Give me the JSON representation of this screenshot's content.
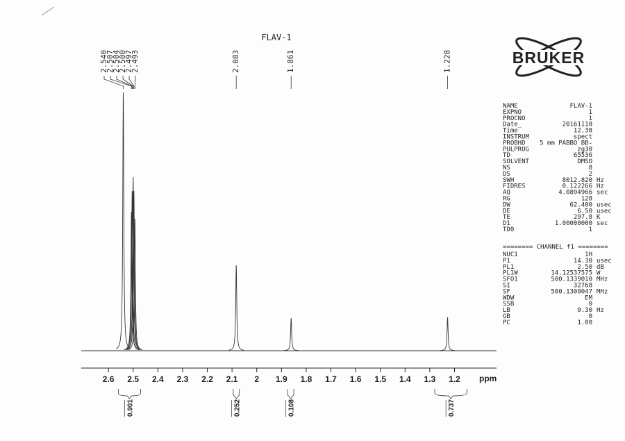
{
  "chart_data": {
    "type": "nmr",
    "title": "FLAV-1",
    "logo": "BRUKER",
    "x_label": "ppm",
    "xlim": [
      2.71,
      1.03
    ],
    "xticks": [
      2.6,
      2.5,
      2.4,
      2.3,
      2.2,
      2.1,
      2.0,
      1.9,
      1.8,
      1.7,
      1.6,
      1.5,
      1.4,
      1.3,
      1.2
    ],
    "ylim": [
      0,
      400
    ],
    "color": "#333333",
    "peak_labels": [
      {
        "value": 2.54,
        "label": "2.540"
      },
      {
        "value": 2.507,
        "label": "2.507"
      },
      {
        "value": 2.504,
        "label": "2.504"
      },
      {
        "value": 2.5,
        "label": "2.500"
      },
      {
        "value": 2.497,
        "label": "2.497"
      },
      {
        "value": 2.493,
        "label": "2.493"
      },
      {
        "value": 2.083,
        "label": "2.083"
      },
      {
        "value": 1.861,
        "label": "1.861"
      },
      {
        "value": 1.228,
        "label": "1.228"
      }
    ],
    "peak_heights": [
      372,
      200,
      230,
      250,
      230,
      190,
      123,
      47,
      48
    ],
    "integrals": [
      {
        "range": [
          2.56,
          2.47
        ],
        "value": 0.901
      },
      {
        "range": [
          2.095,
          2.07
        ],
        "value": 0.252
      },
      {
        "range": [
          1.875,
          1.85
        ],
        "value": 0.108
      },
      {
        "range": [
          1.28,
          1.15
        ],
        "value": 0.737
      }
    ],
    "parameters": [
      [
        "NAME",
        "FLAV-1",
        ""
      ],
      [
        "EXPNO",
        "1",
        ""
      ],
      [
        "PROCNO",
        "1",
        ""
      ],
      [
        "Date_",
        "20161118",
        ""
      ],
      [
        "Time",
        "12.38",
        ""
      ],
      [
        "INSTRUM",
        "spect",
        ""
      ],
      [
        "PROBHD",
        "5 mm PABBO BB-",
        ""
      ],
      [
        "PULPROG",
        "zg30",
        ""
      ],
      [
        "TD",
        "65536",
        ""
      ],
      [
        "SOLVENT",
        "DMSO",
        ""
      ],
      [
        "NS",
        "8",
        ""
      ],
      [
        "DS",
        "2",
        ""
      ],
      [
        "SWH",
        "8012.820",
        "Hz"
      ],
      [
        "FIDRES",
        "0.122266",
        "Hz"
      ],
      [
        "AQ",
        "4.0894966",
        "sec"
      ],
      [
        "RG",
        "128",
        ""
      ],
      [
        "DW",
        "62.400",
        "usec"
      ],
      [
        "DE",
        "6.50",
        "usec"
      ],
      [
        "TE",
        "297.8",
        "K"
      ],
      [
        "D1",
        "1.00000000",
        "sec"
      ],
      [
        "TD0",
        "1",
        ""
      ]
    ],
    "channel_header": "======== CHANNEL f1 ========",
    "channel_parameters": [
      [
        "NUC1",
        "1H",
        ""
      ],
      [
        "P1",
        "14.30",
        "usec"
      ],
      [
        "PL1",
        "2.50",
        "dB"
      ],
      [
        "PL1W",
        "14.12537575",
        "W"
      ],
      [
        "SFO1",
        "500.1339010",
        "MHz"
      ],
      [
        "SI",
        "32768",
        ""
      ],
      [
        "SF",
        "500.1300047",
        "MHz"
      ],
      [
        "WDW",
        "EM",
        ""
      ],
      [
        "SSB",
        "0",
        ""
      ],
      [
        "LB",
        "0.30",
        "Hz"
      ],
      [
        "GB",
        "0",
        ""
      ],
      [
        "PC",
        "1.00",
        ""
      ]
    ]
  }
}
